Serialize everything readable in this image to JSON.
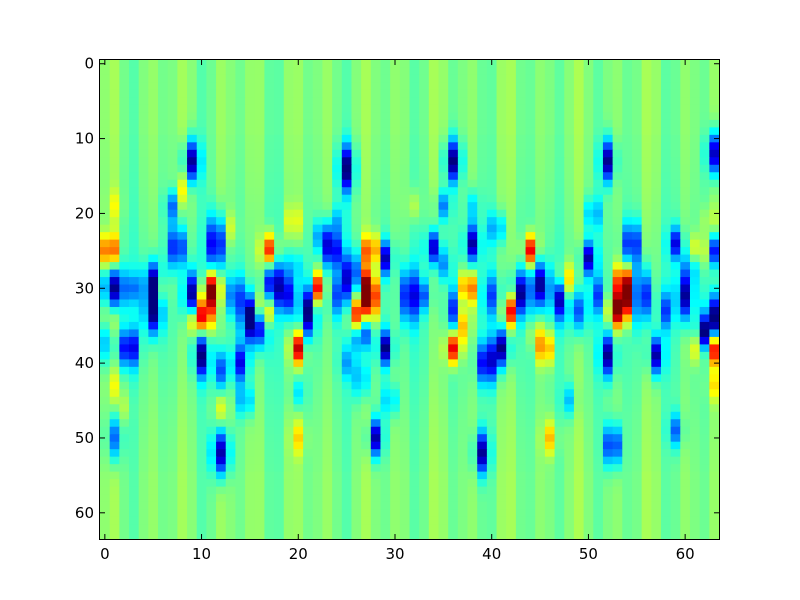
{
  "chart_data": {
    "type": "heatmap",
    "title": "",
    "xlabel": "",
    "ylabel": "",
    "rows": 64,
    "cols": 64,
    "xlim": [
      -0.5,
      63.5
    ],
    "ylim": [
      63.5,
      -0.5
    ],
    "colormap": "jet",
    "value_range": [
      -1,
      1
    ],
    "x_ticks": [
      0,
      10,
      20,
      30,
      40,
      50,
      60
    ],
    "y_ticks": [
      0,
      10,
      20,
      30,
      40,
      50,
      60
    ],
    "x_tick_labels": [
      "0",
      "10",
      "20",
      "30",
      "40",
      "50",
      "60"
    ],
    "y_tick_labels": [
      "0",
      "10",
      "20",
      "30",
      "40",
      "50",
      "60"
    ],
    "pattern_period_cols": 26,
    "background_value": 0.0,
    "column_stripe_amplitude": 0.06,
    "features": [
      {
        "col": 0.5,
        "row": 25,
        "value": 0.9,
        "w": 0.5,
        "h": 1.6
      },
      {
        "col": 1,
        "row": 30,
        "value": -1.0,
        "w": 0.7,
        "h": 2.0
      },
      {
        "col": 0.5,
        "row": 34,
        "value": 0.25,
        "w": 0.6,
        "h": 2.0
      },
      {
        "col": 1,
        "row": 19,
        "value": 0.2,
        "w": 0.5,
        "h": 1.5
      },
      {
        "col": 0,
        "row": 37,
        "value": -0.35,
        "w": 0.7,
        "h": 2.0
      },
      {
        "col": 1,
        "row": 50,
        "value": -0.6,
        "w": 0.5,
        "h": 2.2
      },
      {
        "col": 1,
        "row": 43,
        "value": 0.2,
        "w": 0.5,
        "h": 1.5
      },
      {
        "col": 2.5,
        "row": 38,
        "value": -0.9,
        "w": 0.6,
        "h": 1.8
      },
      {
        "col": 3,
        "row": 30,
        "value": -0.35,
        "w": 0.6,
        "h": 1.5
      },
      {
        "col": 2,
        "row": 46,
        "value": 0.15,
        "w": 0.5,
        "h": 1.5
      },
      {
        "col": 5,
        "row": 29,
        "value": -0.85,
        "w": 0.6,
        "h": 1.8
      },
      {
        "col": 5,
        "row": 33,
        "value": -1.0,
        "w": 0.6,
        "h": 2.2
      },
      {
        "col": 6,
        "row": 30,
        "value": 0.3,
        "w": 0.5,
        "h": 1.5
      },
      {
        "col": 7.5,
        "row": 24.5,
        "value": -0.9,
        "w": 0.55,
        "h": 2.0
      },
      {
        "col": 7,
        "row": 19,
        "value": -0.5,
        "w": 0.5,
        "h": 1.5
      },
      {
        "col": 8,
        "row": 17,
        "value": 0.25,
        "w": 0.5,
        "h": 1.5
      },
      {
        "col": 9,
        "row": 13,
        "value": -0.95,
        "w": 0.55,
        "h": 2.0
      },
      {
        "col": 9,
        "row": 31,
        "value": -0.95,
        "w": 0.6,
        "h": 2.2
      },
      {
        "col": 9.5,
        "row": 34,
        "value": 0.85,
        "w": 0.5,
        "h": 1.5
      },
      {
        "col": 10.5,
        "row": 33,
        "value": 0.9,
        "w": 0.55,
        "h": 2.0
      },
      {
        "col": 11,
        "row": 30,
        "value": 1.0,
        "w": 0.6,
        "h": 1.6
      },
      {
        "col": 10,
        "row": 39,
        "value": -0.9,
        "w": 0.5,
        "h": 2.0
      },
      {
        "col": 11.5,
        "row": 24,
        "value": -1.0,
        "w": 0.55,
        "h": 2.5
      },
      {
        "col": 12,
        "row": 41,
        "value": -0.6,
        "w": 0.5,
        "h": 2.0
      },
      {
        "col": 12,
        "row": 46,
        "value": 0.2,
        "w": 0.5,
        "h": 1.5
      },
      {
        "col": 12,
        "row": 52,
        "value": -0.95,
        "w": 0.6,
        "h": 2.2
      },
      {
        "col": 13,
        "row": 22,
        "value": 0.2,
        "w": 0.5,
        "h": 1.5
      },
      {
        "col": 13.5,
        "row": 31,
        "value": -0.6,
        "w": 0.6,
        "h": 2.0
      },
      {
        "col": 14,
        "row": 40,
        "value": -0.7,
        "w": 0.6,
        "h": 1.8
      },
      {
        "col": 14.5,
        "row": 45,
        "value": -0.5,
        "w": 0.5,
        "h": 1.5
      },
      {
        "col": 15,
        "row": 34,
        "value": -0.95,
        "w": 0.6,
        "h": 2.2
      },
      {
        "col": 16,
        "row": 35,
        "value": -0.7,
        "w": 0.6,
        "h": 2.0
      },
      {
        "col": 16.5,
        "row": 33,
        "value": 0.9,
        "w": 0.55,
        "h": 1.6
      },
      {
        "col": 17,
        "row": 25,
        "value": 0.85,
        "w": 0.55,
        "h": 1.6
      },
      {
        "col": 17.5,
        "row": 29.5,
        "value": -0.9,
        "w": 0.6,
        "h": 2.2
      },
      {
        "col": 19,
        "row": 31,
        "value": -0.7,
        "w": 0.6,
        "h": 2.0
      },
      {
        "col": 19.5,
        "row": 27,
        "value": -0.4,
        "w": 0.5,
        "h": 1.5
      },
      {
        "col": 19.5,
        "row": 21,
        "value": 0.3,
        "w": 0.5,
        "h": 1.5
      },
      {
        "col": 20,
        "row": 38,
        "value": 0.9,
        "w": 0.5,
        "h": 1.5
      },
      {
        "col": 20,
        "row": 44,
        "value": -0.3,
        "w": 0.5,
        "h": 1.5
      },
      {
        "col": 20,
        "row": 50,
        "value": 0.3,
        "w": 0.5,
        "h": 1.6
      },
      {
        "col": 21,
        "row": 33,
        "value": -0.95,
        "w": 0.55,
        "h": 2.5
      },
      {
        "col": 22,
        "row": 30,
        "value": 0.9,
        "w": 0.5,
        "h": 1.5
      },
      {
        "col": 22.5,
        "row": 23,
        "value": -0.55,
        "w": 0.5,
        "h": 1.5
      },
      {
        "col": 23.5,
        "row": 25,
        "value": -0.9,
        "w": 0.6,
        "h": 1.8
      },
      {
        "col": 24,
        "row": 31,
        "value": -0.5,
        "w": 0.6,
        "h": 2.0
      },
      {
        "col": 24,
        "row": 21,
        "value": -0.3,
        "w": 0.5,
        "h": 1.5
      },
      {
        "col": 25,
        "row": 14,
        "value": -0.95,
        "w": 0.55,
        "h": 2.2
      },
      {
        "col": 25,
        "row": 40,
        "value": -0.3,
        "w": 0.5,
        "h": 1.5
      },
      {
        "col": 25.5,
        "row": 28.5,
        "value": -0.95,
        "w": 0.55,
        "h": 2.2
      },
      {
        "col": 26,
        "row": 34,
        "value": 0.95,
        "w": 0.55,
        "h": 1.8
      },
      {
        "col": 26.5,
        "row": 36,
        "value": -0.95,
        "w": 0.6,
        "h": 1.6
      },
      {
        "col": 27,
        "row": 30,
        "value": 0.85,
        "w": 0.6,
        "h": 1.8
      },
      {
        "col": 27.5,
        "row": 31.5,
        "value": 0.8,
        "w": 0.55,
        "h": 2.0
      },
      {
        "col": 27.5,
        "row": 25,
        "value": 0.9,
        "w": 0.5,
        "h": 1.5
      },
      {
        "col": 26.5,
        "row": 42,
        "value": -0.5,
        "w": 0.5,
        "h": 2.0
      },
      {
        "col": 28,
        "row": 50,
        "value": -0.9,
        "w": 0.5,
        "h": 1.8
      },
      {
        "col": 29,
        "row": 26,
        "value": -0.8,
        "w": 0.5,
        "h": 1.6
      },
      {
        "col": 29,
        "row": 38,
        "value": -0.9,
        "w": 0.5,
        "h": 1.6
      },
      {
        "col": 29.5,
        "row": 45,
        "value": -0.4,
        "w": 0.5,
        "h": 1.5
      },
      {
        "col": 31.5,
        "row": 31,
        "value": -0.9,
        "w": 0.55,
        "h": 2.5
      },
      {
        "col": 32,
        "row": 19,
        "value": 0.2,
        "w": 0.5,
        "h": 1.5
      },
      {
        "col": 33,
        "row": 31,
        "value": -0.45,
        "w": 0.5,
        "h": 1.5
      },
      {
        "col": 34,
        "row": 24.5,
        "value": -0.85,
        "w": 0.5,
        "h": 1.6
      },
      {
        "col": 35,
        "row": 27,
        "value": -0.4,
        "w": 0.5,
        "h": 1.5
      },
      {
        "col": 35,
        "row": 19,
        "value": -0.5,
        "w": 0.5,
        "h": 1.5
      },
      {
        "col": 36,
        "row": 13,
        "value": -0.95,
        "w": 0.55,
        "h": 2.0
      },
      {
        "col": 36,
        "row": 38,
        "value": 0.9,
        "w": 0.5,
        "h": 1.5
      },
      {
        "col": 36.5,
        "row": 33,
        "value": -0.95,
        "w": 0.6,
        "h": 2.0
      },
      {
        "col": 37,
        "row": 34,
        "value": 0.95,
        "w": 0.5,
        "h": 2.0
      },
      {
        "col": 37.5,
        "row": 30,
        "value": 0.9,
        "w": 0.5,
        "h": 1.5
      },
      {
        "col": 38,
        "row": 24,
        "value": -0.9,
        "w": 0.5,
        "h": 1.8
      },
      {
        "col": 38,
        "row": 19,
        "value": -0.3,
        "w": 0.5,
        "h": 1.5
      },
      {
        "col": 39,
        "row": 52,
        "value": -0.9,
        "w": 0.5,
        "h": 2.0
      },
      {
        "col": 39.5,
        "row": 40,
        "value": -0.9,
        "w": 0.6,
        "h": 2.0
      },
      {
        "col": 40,
        "row": 31,
        "value": -0.5,
        "w": 0.6,
        "h": 2.0
      },
      {
        "col": 40.5,
        "row": 22,
        "value": -0.5,
        "w": 0.5,
        "h": 1.5
      },
      {
        "col": 41,
        "row": 38,
        "value": -0.95,
        "w": 0.55,
        "h": 1.8
      },
      {
        "col": 42,
        "row": 33,
        "value": 0.9,
        "w": 0.5,
        "h": 1.5
      },
      {
        "col": 43,
        "row": 31,
        "value": -0.9,
        "w": 0.6,
        "h": 2.2
      },
      {
        "col": 44,
        "row": 25,
        "value": 0.9,
        "w": 0.5,
        "h": 1.5
      },
      {
        "col": 44.5,
        "row": 36,
        "value": 0.25,
        "w": 0.5,
        "h": 1.5
      },
      {
        "col": 45,
        "row": 29.5,
        "value": -0.9,
        "w": 0.6,
        "h": 2.2
      },
      {
        "col": 45.5,
        "row": 38,
        "value": 0.7,
        "w": 0.5,
        "h": 1.6
      },
      {
        "col": 46,
        "row": 50,
        "value": 0.4,
        "w": 0.5,
        "h": 1.6
      },
      {
        "col": 47,
        "row": 31,
        "value": -0.9,
        "w": 0.55,
        "h": 2.2
      },
      {
        "col": 47.5,
        "row": 29,
        "value": 0.8,
        "w": 0.5,
        "h": 1.6
      },
      {
        "col": 48,
        "row": 45,
        "value": -0.35,
        "w": 0.5,
        "h": 1.5
      },
      {
        "col": 49,
        "row": 33,
        "value": -0.6,
        "w": 0.6,
        "h": 2.0
      },
      {
        "col": 50,
        "row": 26,
        "value": -0.85,
        "w": 0.5,
        "h": 1.6
      },
      {
        "col": 50.5,
        "row": 20,
        "value": -0.45,
        "w": 0.5,
        "h": 1.5
      },
      {
        "col": 51,
        "row": 31,
        "value": -0.5,
        "w": 0.5,
        "h": 1.8
      },
      {
        "col": 52,
        "row": 13,
        "value": -0.95,
        "w": 0.5,
        "h": 2.0
      },
      {
        "col": 52,
        "row": 39,
        "value": -0.9,
        "w": 0.5,
        "h": 2.0
      },
      {
        "col": 52.5,
        "row": 51,
        "value": -0.95,
        "w": 0.5,
        "h": 2.0
      },
      {
        "col": 53,
        "row": 33,
        "value": 1.0,
        "w": 0.6,
        "h": 1.6
      },
      {
        "col": 53.5,
        "row": 29,
        "value": 0.8,
        "w": 0.5,
        "h": 1.6
      },
      {
        "col": 54,
        "row": 31,
        "value": 0.95,
        "w": 0.6,
        "h": 2.0
      },
      {
        "col": 54.5,
        "row": 24,
        "value": -0.9,
        "w": 0.5,
        "h": 2.0
      },
      {
        "col": 55.5,
        "row": 31,
        "value": -0.95,
        "w": 0.6,
        "h": 2.5
      },
      {
        "col": 57,
        "row": 39,
        "value": -0.9,
        "w": 0.5,
        "h": 1.8
      },
      {
        "col": 58,
        "row": 33,
        "value": -0.5,
        "w": 0.5,
        "h": 1.8
      },
      {
        "col": 59,
        "row": 24,
        "value": -0.7,
        "w": 0.5,
        "h": 1.5
      },
      {
        "col": 59,
        "row": 49,
        "value": -0.5,
        "w": 0.5,
        "h": 1.6
      },
      {
        "col": 60,
        "row": 31,
        "value": -0.9,
        "w": 0.55,
        "h": 2.2
      },
      {
        "col": 60.5,
        "row": 27,
        "value": -0.4,
        "w": 0.5,
        "h": 1.5
      },
      {
        "col": 61,
        "row": 38,
        "value": 0.3,
        "w": 0.5,
        "h": 1.5
      },
      {
        "col": 61.5,
        "row": 25,
        "value": 0.5,
        "w": 0.5,
        "h": 1.5
      },
      {
        "col": 62,
        "row": 36,
        "value": -0.9,
        "w": 0.5,
        "h": 1.6
      },
      {
        "col": 62.5,
        "row": 21,
        "value": 0.2,
        "w": 0.5,
        "h": 1.5
      },
      {
        "col": 63,
        "row": 12,
        "value": -0.9,
        "w": 0.5,
        "h": 2.0
      },
      {
        "col": 63,
        "row": 25,
        "value": -0.7,
        "w": 0.5,
        "h": 1.5
      },
      {
        "col": 63,
        "row": 34,
        "value": -1.0,
        "w": 0.5,
        "h": 2.2
      },
      {
        "col": 63,
        "row": 38,
        "value": 0.95,
        "w": 0.5,
        "h": 1.5
      },
      {
        "col": 63,
        "row": 43,
        "value": 0.3,
        "w": 0.5,
        "h": 1.5
      }
    ]
  }
}
